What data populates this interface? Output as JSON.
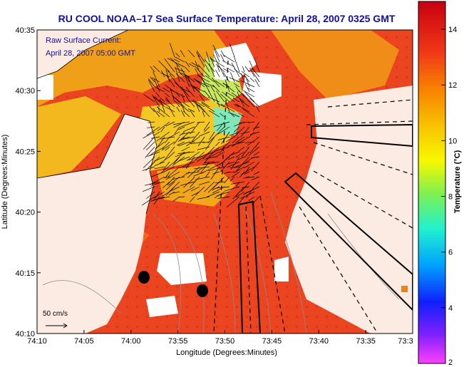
{
  "chart_data": {
    "type": "heatmap",
    "title": "RU COOL  NOAA–17  Sea Surface Temperature:  April 28, 2007 0325 GMT",
    "annotation_lines": [
      "Raw Surface Current:",
      "April 28, 2007 05:00 GMT"
    ],
    "xlabel": "Longitude (Degrees:Minutes)",
    "ylabel": "Latitude (Degrees:Minutes)",
    "x_ticks": [
      "74:10",
      "74:05",
      "74:00",
      "73:55",
      "73:50",
      "73:45",
      "73:40",
      "73:35",
      "73:3"
    ],
    "y_ticks": [
      "40:35",
      "40:30",
      "40:25",
      "40:20",
      "40:15",
      "40:10"
    ],
    "xlim": [
      "74:10 W",
      "73:30 W"
    ],
    "ylim": [
      "40:10 N",
      "40:35 N"
    ],
    "colorbar": {
      "label": "Temperature (°C)",
      "range": [
        2,
        15
      ],
      "ticks": [
        "14",
        "12",
        "10",
        "8",
        "6",
        "4",
        "2"
      ]
    },
    "scale_label": "50 cm/s",
    "colors": {
      "title": "#1010a0",
      "land": "#fcebe2",
      "sst_warm": "#e8351c",
      "sst_mid": "#f08a18",
      "sst_cool": "#f2c821",
      "vectors": "#000000",
      "markers": "#000000"
    },
    "legend": "none",
    "grid": false
  }
}
